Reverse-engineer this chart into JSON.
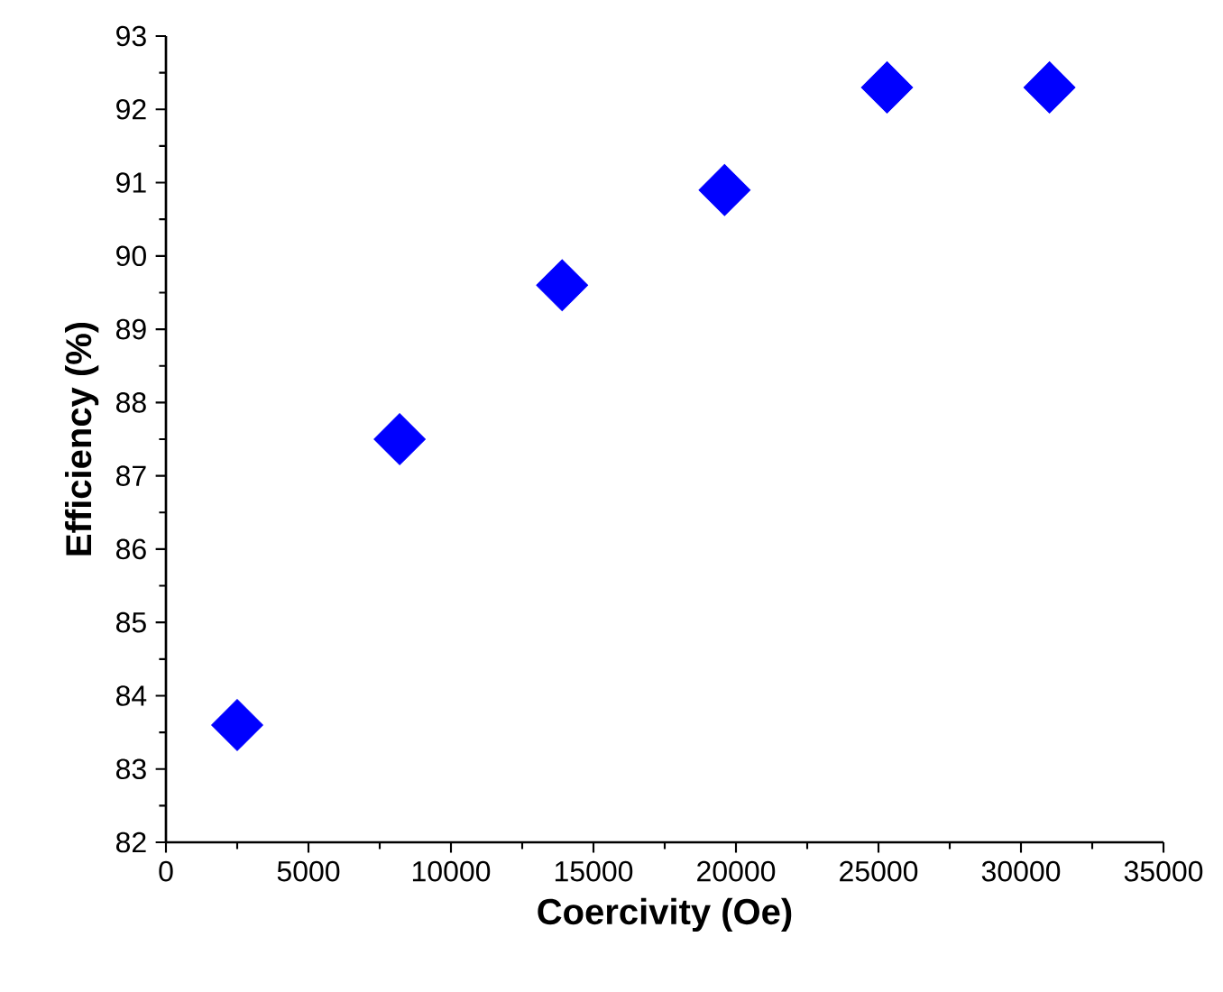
{
  "chart_data": {
    "type": "scatter",
    "xlabel": "Coercivity (Oe)",
    "ylabel": "Efficiency (%)",
    "x": [
      2500,
      8200,
      13900,
      19600,
      25300,
      31000
    ],
    "series": [
      {
        "color": "#0000ff",
        "values": [
          83.6,
          87.5,
          89.6,
          90.9,
          92.3,
          92.3
        ]
      }
    ],
    "marker": "diamond",
    "grid": false,
    "xlim": [
      0,
      35000
    ],
    "xticks": [
      0,
      5000,
      10000,
      15000,
      20000,
      25000,
      30000,
      35000
    ],
    "ylim": [
      82,
      93
    ],
    "yticks": [
      82,
      83,
      84,
      85,
      86,
      87,
      88,
      89,
      90,
      91,
      92,
      93
    ]
  }
}
